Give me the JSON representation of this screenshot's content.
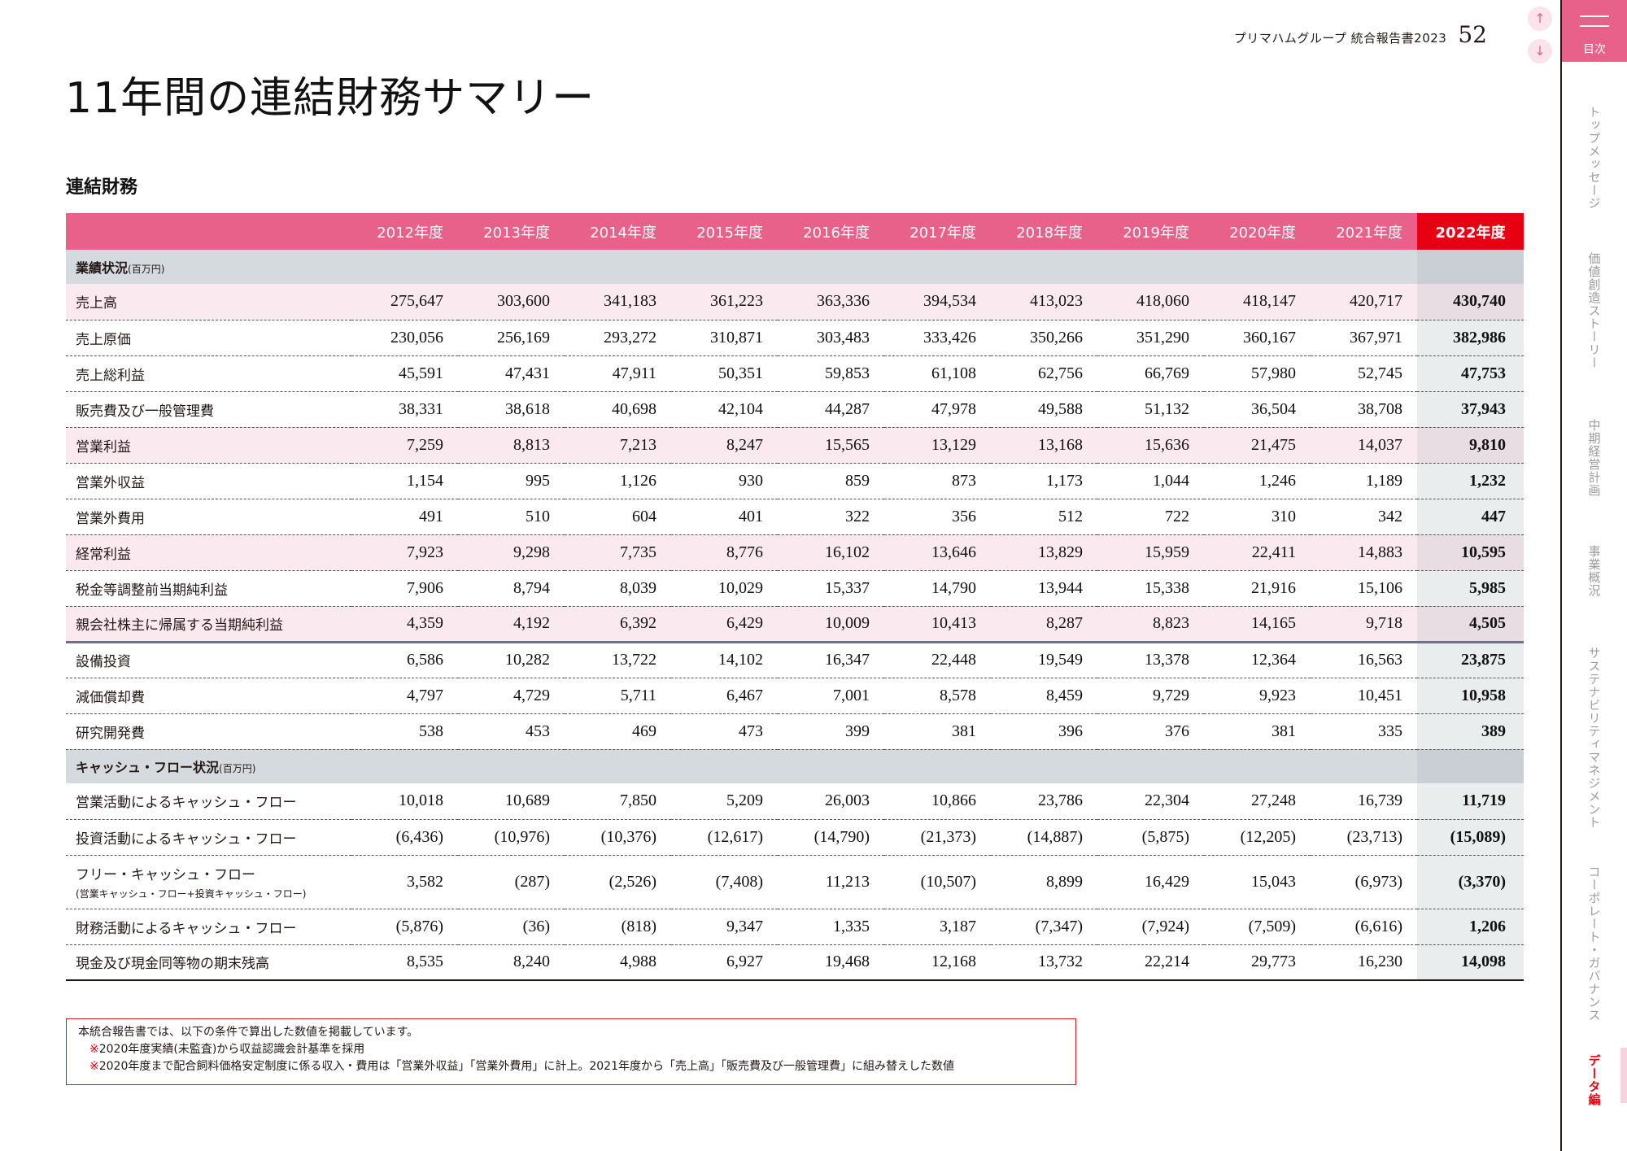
{
  "header": {
    "report_name": "プリマハムグループ 統合報告書2023",
    "page_number": "52",
    "prev_icon": "↑",
    "next_icon": "↓"
  },
  "sidebar": {
    "toc_label": "目次",
    "tabs": [
      {
        "label": "トップメッセージ",
        "active": false
      },
      {
        "label": "価値創造ストーリー",
        "active": false
      },
      {
        "label": "中期経営計画",
        "active": false
      },
      {
        "label": "事業概況",
        "active": false
      },
      {
        "label": "サステナビリティマネジメント",
        "active": false
      },
      {
        "label": "コーポレート・ガバナンス",
        "active": false
      },
      {
        "label": "データ編",
        "active": true
      }
    ],
    "active_color": "#e60012"
  },
  "page_title": "11年間の連結財務サマリー",
  "section_title": "連結財務",
  "colors": {
    "header_pink": "#e8618a",
    "highlight_red": "#e60012",
    "row_pink": "#fbe9f0",
    "group_grey": "#d5dadf"
  },
  "table": {
    "columns": [
      "2012年度",
      "2013年度",
      "2014年度",
      "2015年度",
      "2016年度",
      "2017年度",
      "2018年度",
      "2019年度",
      "2020年度",
      "2021年度",
      "2022年度"
    ],
    "groups": [
      {
        "title": "業績状況",
        "unit": "(百万円)"
      },
      {
        "title": "キャッシュ・フロー状況",
        "unit": "(百万円)"
      }
    ],
    "rows": [
      {
        "label": "売上高",
        "values": [
          "275,647",
          "303,600",
          "341,183",
          "361,223",
          "363,336",
          "394,534",
          "413,023",
          "418,060",
          "418,147",
          "420,717",
          "430,740"
        ]
      },
      {
        "label": "売上原価",
        "values": [
          "230,056",
          "256,169",
          "293,272",
          "310,871",
          "303,483",
          "333,426",
          "350,266",
          "351,290",
          "360,167",
          "367,971",
          "382,986"
        ]
      },
      {
        "label": "売上総利益",
        "values": [
          "45,591",
          "47,431",
          "47,911",
          "50,351",
          "59,853",
          "61,108",
          "62,756",
          "66,769",
          "57,980",
          "52,745",
          "47,753"
        ]
      },
      {
        "label": "販売費及び一般管理費",
        "values": [
          "38,331",
          "38,618",
          "40,698",
          "42,104",
          "44,287",
          "47,978",
          "49,588",
          "51,132",
          "36,504",
          "38,708",
          "37,943"
        ]
      },
      {
        "label": "営業利益",
        "values": [
          "7,259",
          "8,813",
          "7,213",
          "8,247",
          "15,565",
          "13,129",
          "13,168",
          "15,636",
          "21,475",
          "14,037",
          "9,810"
        ]
      },
      {
        "label": "営業外収益",
        "values": [
          "1,154",
          "995",
          "1,126",
          "930",
          "859",
          "873",
          "1,173",
          "1,044",
          "1,246",
          "1,189",
          "1,232"
        ]
      },
      {
        "label": "営業外費用",
        "values": [
          "491",
          "510",
          "604",
          "401",
          "322",
          "356",
          "512",
          "722",
          "310",
          "342",
          "447"
        ]
      },
      {
        "label": "経常利益",
        "values": [
          "7,923",
          "9,298",
          "7,735",
          "8,776",
          "16,102",
          "13,646",
          "13,829",
          "15,959",
          "22,411",
          "14,883",
          "10,595"
        ]
      },
      {
        "label": "税金等調整前当期純利益",
        "values": [
          "7,906",
          "8,794",
          "8,039",
          "10,029",
          "15,337",
          "14,790",
          "13,944",
          "15,338",
          "21,916",
          "15,106",
          "5,985"
        ]
      },
      {
        "label": "親会社株主に帰属する当期純利益",
        "values": [
          "4,359",
          "4,192",
          "6,392",
          "6,429",
          "10,009",
          "10,413",
          "8,287",
          "8,823",
          "14,165",
          "9,718",
          "4,505"
        ]
      },
      {
        "label": "設備投資",
        "values": [
          "6,586",
          "10,282",
          "13,722",
          "14,102",
          "16,347",
          "22,448",
          "19,549",
          "13,378",
          "12,364",
          "16,563",
          "23,875"
        ]
      },
      {
        "label": "減価償却費",
        "values": [
          "4,797",
          "4,729",
          "5,711",
          "6,467",
          "7,001",
          "8,578",
          "8,459",
          "9,729",
          "9,923",
          "10,451",
          "10,958"
        ]
      },
      {
        "label": "研究開発費",
        "values": [
          "538",
          "453",
          "469",
          "473",
          "399",
          "381",
          "396",
          "376",
          "381",
          "335",
          "389"
        ]
      },
      {
        "label": "営業活動によるキャッシュ・フロー",
        "values": [
          "10,018",
          "10,689",
          "7,850",
          "5,209",
          "26,003",
          "10,866",
          "23,786",
          "22,304",
          "27,248",
          "16,739",
          "11,719"
        ]
      },
      {
        "label": "投資活動によるキャッシュ・フロー",
        "values": [
          "(6,436)",
          "(10,976)",
          "(10,376)",
          "(12,617)",
          "(14,790)",
          "(21,373)",
          "(14,887)",
          "(5,875)",
          "(12,205)",
          "(23,713)",
          "(15,089)"
        ]
      },
      {
        "label": "フリー・キャッシュ・フロー",
        "sublabel": "(営業キャッシュ・フロー+投資キャッシュ・フロー)",
        "values": [
          "3,582",
          "(287)",
          "(2,526)",
          "(7,408)",
          "11,213",
          "(10,507)",
          "8,899",
          "16,429",
          "15,043",
          "(6,973)",
          "(3,370)"
        ]
      },
      {
        "label": "財務活動によるキャッシュ・フロー",
        "values": [
          "(5,876)",
          "(36)",
          "(818)",
          "9,347",
          "1,335",
          "3,187",
          "(7,347)",
          "(7,924)",
          "(7,509)",
          "(6,616)",
          "1,206"
        ]
      },
      {
        "label": "現金及び現金同等物の期末残高",
        "values": [
          "8,535",
          "8,240",
          "4,988",
          "6,927",
          "19,468",
          "12,168",
          "13,732",
          "22,214",
          "29,773",
          "16,230",
          "14,098"
        ]
      }
    ]
  },
  "notes": {
    "intro": "本統合報告書では、以下の条件で算出した数値を掲載しています。",
    "mark": "※",
    "items": [
      "2020年度実績(未監査)から収益認識会計基準を採用",
      "2020年度まで配合飼料価格安定制度に係る収入・費用は「営業外収益」「営業外費用」に計上。2021年度から「売上高」「販売費及び一般管理費」に組み替えした数値"
    ]
  }
}
